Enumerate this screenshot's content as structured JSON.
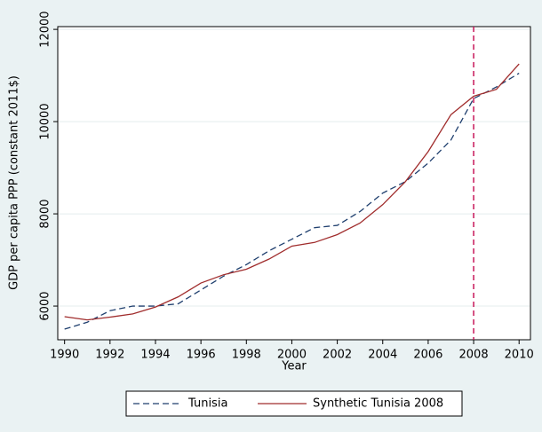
{
  "chart_data": {
    "type": "line",
    "x_label": "Year",
    "y_label": "GDP per capita PPP (constant 2011$)",
    "x": [
      1990,
      1991,
      1992,
      1993,
      1994,
      1995,
      1996,
      1997,
      1998,
      1999,
      2000,
      2001,
      2002,
      2003,
      2004,
      2005,
      2006,
      2007,
      2008,
      2009,
      2010
    ],
    "series": [
      {
        "name": "Tunisia",
        "color": "#1f3f6e",
        "dash": true,
        "values": [
          5500,
          5650,
          5900,
          6000,
          6000,
          6050,
          6350,
          6650,
          6900,
          7200,
          7450,
          7700,
          7750,
          8050,
          8450,
          8700,
          9100,
          9600,
          10500,
          10750,
          11050
        ]
      },
      {
        "name": "Synthetic Tunisia 2008",
        "color": "#a02c2c",
        "dash": false,
        "values": [
          5770,
          5700,
          5760,
          5830,
          5980,
          6200,
          6500,
          6680,
          6800,
          7020,
          7300,
          7380,
          7550,
          7800,
          8200,
          8700,
          9350,
          10150,
          10550,
          10700,
          11250
        ]
      }
    ],
    "reference_line_x": 2008,
    "reference_line_color": "#c8175a",
    "xlim": [
      1989.7,
      2010.5
    ],
    "ylim": [
      5270,
      12060
    ],
    "xticks": [
      1990,
      1992,
      1994,
      1996,
      1998,
      2000,
      2002,
      2004,
      2006,
      2008,
      2010
    ],
    "yticks": [
      6000,
      8000,
      10000,
      12000
    ],
    "grid": true,
    "legend": "bottom"
  }
}
